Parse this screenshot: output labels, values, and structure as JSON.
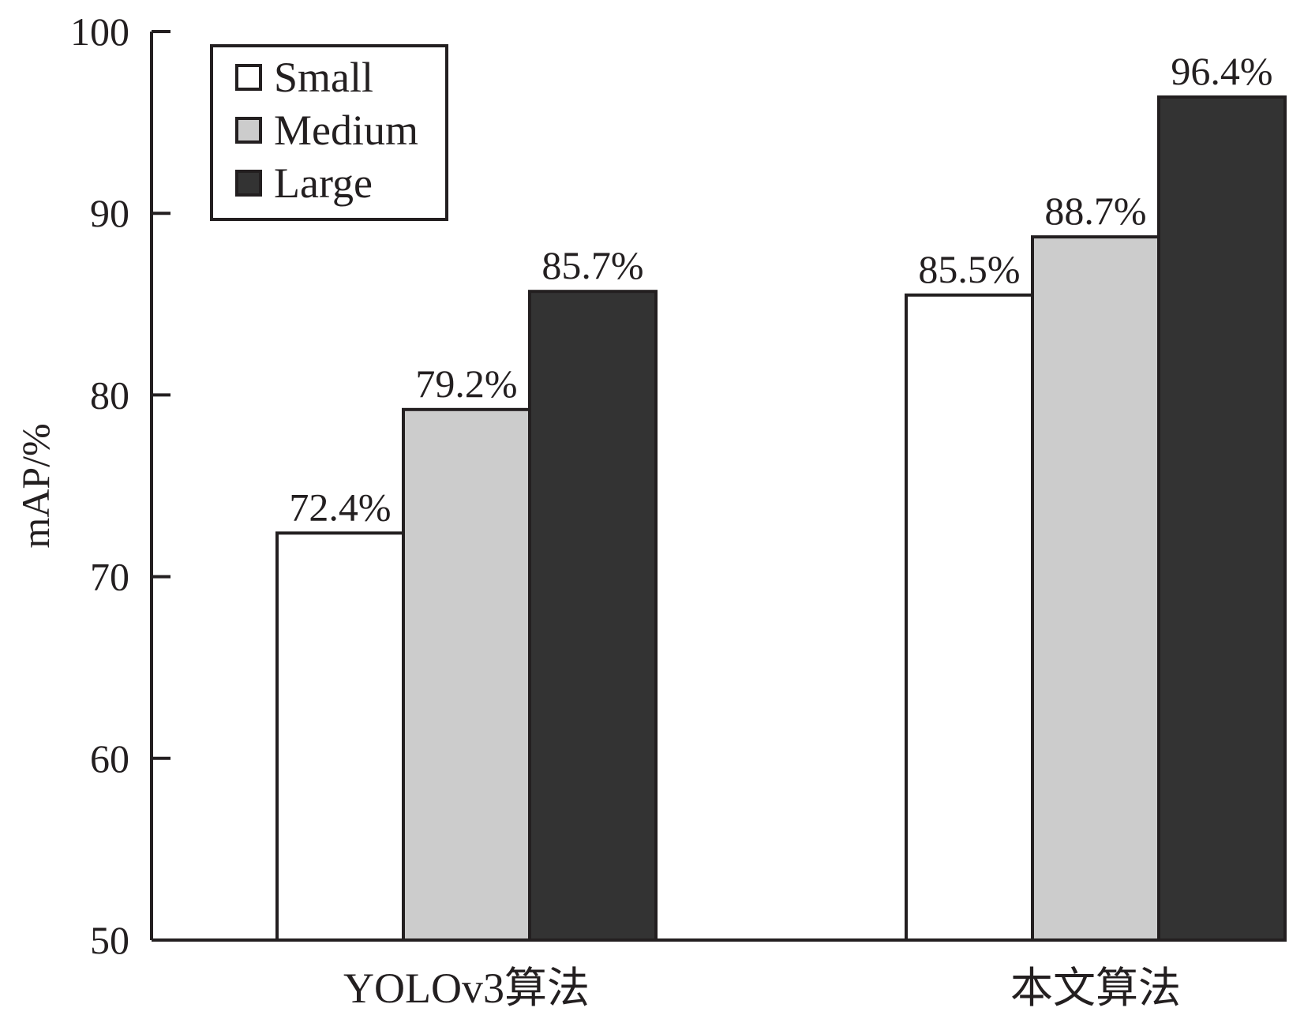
{
  "chart_data": {
    "type": "bar",
    "title": "",
    "xlabel": "",
    "ylabel": "mAP/%",
    "ylim": [
      50,
      100
    ],
    "yticks": [
      50,
      60,
      70,
      80,
      90,
      100
    ],
    "grid": false,
    "legend_position": "top-left",
    "categories": [
      "YOLOv3算法",
      "本文算法"
    ],
    "series": [
      {
        "name": "Small",
        "values": [
          72.4,
          85.5
        ],
        "labels": [
          "72.4%",
          "85.5%"
        ],
        "color": "#ffffff"
      },
      {
        "name": "Medium",
        "values": [
          79.2,
          88.7
        ],
        "labels": [
          "79.2%",
          "88.7%"
        ],
        "color": "#cccccc"
      },
      {
        "name": "Large",
        "values": [
          85.7,
          96.4
        ],
        "labels": [
          "85.7%",
          "96.4%"
        ],
        "color": "#333333"
      }
    ]
  }
}
